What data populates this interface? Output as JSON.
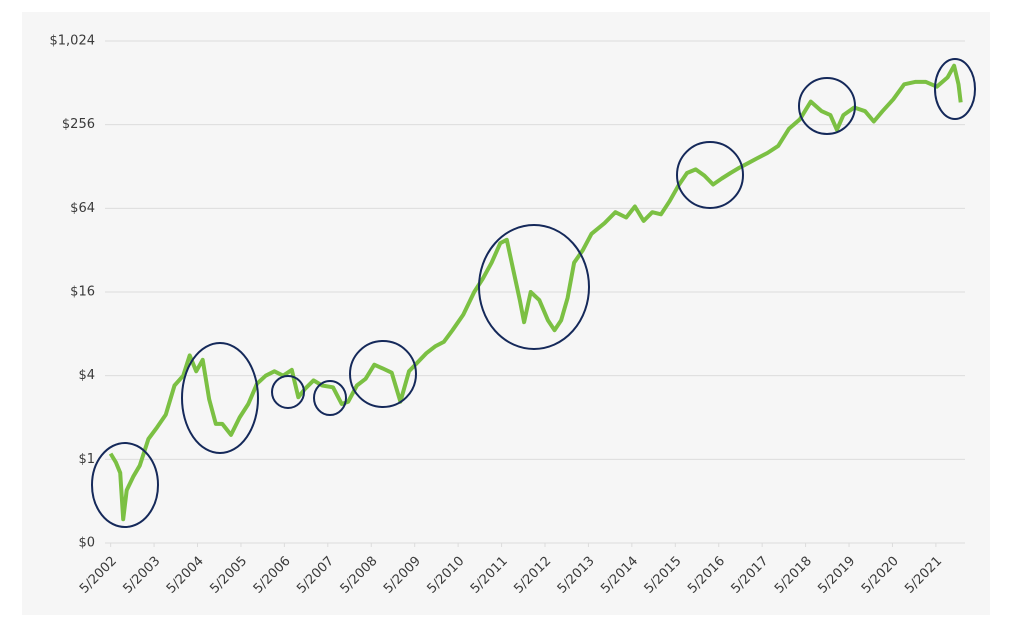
{
  "chart_data": {
    "type": "line",
    "x": [
      2002.33,
      2002.45,
      2002.55,
      2002.62,
      2002.7,
      2002.85,
      2003.0,
      2003.2,
      2003.4,
      2003.6,
      2003.8,
      2004.0,
      2004.15,
      2004.3,
      2004.45,
      2004.6,
      2004.75,
      2004.9,
      2005.1,
      2005.3,
      2005.5,
      2005.7,
      2005.9,
      2006.1,
      2006.3,
      2006.5,
      2006.65,
      2006.8,
      2007.0,
      2007.2,
      2007.45,
      2007.65,
      2007.8,
      2008.0,
      2008.2,
      2008.4,
      2008.6,
      2008.8,
      2009.0,
      2009.2,
      2009.4,
      2009.6,
      2009.8,
      2010.0,
      2010.2,
      2010.45,
      2010.7,
      2010.9,
      2011.1,
      2011.3,
      2011.45,
      2011.6,
      2011.75,
      2011.85,
      2012.0,
      2012.2,
      2012.4,
      2012.55,
      2012.7,
      2012.85,
      2013.0,
      2013.2,
      2013.4,
      2013.7,
      2013.95,
      2014.2,
      2014.4,
      2014.6,
      2014.8,
      2015.0,
      2015.2,
      2015.4,
      2015.6,
      2015.8,
      2016.0,
      2016.2,
      2016.4,
      2016.6,
      2016.8,
      2017.0,
      2017.2,
      2017.45,
      2017.7,
      2017.95,
      2018.2,
      2018.45,
      2018.7,
      2018.9,
      2019.05,
      2019.2,
      2019.45,
      2019.7,
      2019.9,
      2020.1,
      2020.35,
      2020.6,
      2020.85,
      2021.1,
      2021.35,
      2021.6,
      2021.75,
      2021.85,
      2021.9
    ],
    "values": [
      1.1,
      0.95,
      0.8,
      0.37,
      0.6,
      0.75,
      0.9,
      1.4,
      1.7,
      2.1,
      3.4,
      4.0,
      5.6,
      4.3,
      5.2,
      2.7,
      1.8,
      1.8,
      1.5,
      2.0,
      2.5,
      3.5,
      4.0,
      4.3,
      4.0,
      4.4,
      2.8,
      3.2,
      3.7,
      3.4,
      3.3,
      2.5,
      2.6,
      3.4,
      3.8,
      4.8,
      4.5,
      4.2,
      2.6,
      4.3,
      5.0,
      5.8,
      6.5,
      7.0,
      8.5,
      11,
      16,
      20,
      26,
      36,
      38,
      23,
      14,
      9.7,
      16,
      14,
      10,
      8.5,
      10,
      14.5,
      26,
      32,
      42,
      50,
      60,
      55,
      66,
      52,
      60,
      58,
      72,
      93,
      115,
      122,
      110,
      95,
      105,
      115,
      125,
      135,
      146,
      160,
      180,
      240,
      280,
      375,
      320,
      300,
      235,
      300,
      340,
      320,
      270,
      320,
      390,
      500,
      520,
      520,
      480,
      560,
      680,
      500,
      370
    ],
    "color": "#7bc043",
    "log_scale": true,
    "grid": true,
    "xlim": [
      2002.2,
      2022.0
    ],
    "xticks": [
      {
        "value": 2002.33,
        "label": "5/2002"
      },
      {
        "value": 2003.33,
        "label": "5/2003"
      },
      {
        "value": 2004.33,
        "label": "5/2004"
      },
      {
        "value": 2005.33,
        "label": "5/2005"
      },
      {
        "value": 2006.33,
        "label": "5/2006"
      },
      {
        "value": 2007.33,
        "label": "5/2007"
      },
      {
        "value": 2008.33,
        "label": "5/2008"
      },
      {
        "value": 2009.33,
        "label": "5/2009"
      },
      {
        "value": 2010.33,
        "label": "5/2010"
      },
      {
        "value": 2011.33,
        "label": "5/2011"
      },
      {
        "value": 2012.33,
        "label": "5/2012"
      },
      {
        "value": 2013.33,
        "label": "5/2013"
      },
      {
        "value": 2014.33,
        "label": "5/2014"
      },
      {
        "value": 2015.33,
        "label": "5/2015"
      },
      {
        "value": 2016.33,
        "label": "5/2016"
      },
      {
        "value": 2017.33,
        "label": "5/2017"
      },
      {
        "value": 2018.33,
        "label": "5/2018"
      },
      {
        "value": 2019.33,
        "label": "5/2019"
      },
      {
        "value": 2020.33,
        "label": "5/2020"
      },
      {
        "value": 2021.33,
        "label": "5/2021"
      }
    ],
    "ylim": [
      0.25,
      1024
    ],
    "yticks": [
      {
        "value": 0.25,
        "label": "$0"
      },
      {
        "value": 1,
        "label": "$1"
      },
      {
        "value": 4,
        "label": "$4"
      },
      {
        "value": 16,
        "label": "$16"
      },
      {
        "value": 64,
        "label": "$64"
      },
      {
        "value": 256,
        "label": "$256"
      },
      {
        "value": 1024,
        "label": "$1,024"
      }
    ]
  }
}
